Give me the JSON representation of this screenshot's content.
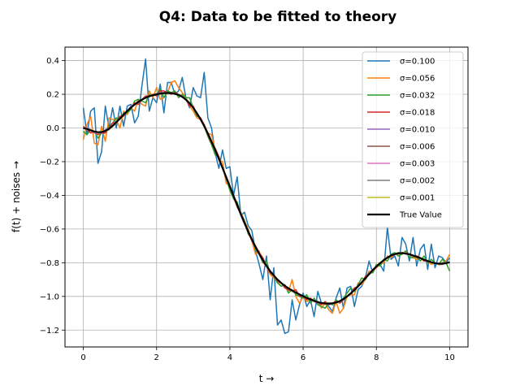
{
  "chart_data": {
    "type": "line",
    "title": "Q4: Data to be fitted to theory",
    "xlabel": "t →",
    "ylabel": "f(t) + noises →",
    "xlim": [
      -0.5,
      10.5
    ],
    "ylim": [
      -1.3,
      0.48
    ],
    "xticks": [
      0,
      2,
      4,
      6,
      8,
      10
    ],
    "xtick_labels": [
      "0",
      "2",
      "4",
      "6",
      "8",
      "10"
    ],
    "yticks": [
      -1.2,
      -1.0,
      -0.8,
      -0.6,
      -0.4,
      -0.2,
      0.0,
      0.2,
      0.4
    ],
    "ytick_labels": [
      "−1.2",
      "−1.0",
      "−0.8",
      "−0.6",
      "−0.4",
      "−0.2",
      "0.0",
      "0.2",
      "0.4"
    ],
    "grid": true,
    "legend_position": "upper-right",
    "x": [
      0.0,
      0.1,
      0.2,
      0.3,
      0.4,
      0.5,
      0.6,
      0.7,
      0.8,
      0.9,
      1.0,
      1.1,
      1.2,
      1.3,
      1.4,
      1.5,
      1.6,
      1.7,
      1.8,
      1.9,
      2.0,
      2.1,
      2.2,
      2.3,
      2.4,
      2.5,
      2.6,
      2.7,
      2.8,
      2.9,
      3.0,
      3.1,
      3.2,
      3.3,
      3.4,
      3.5,
      3.6,
      3.7,
      3.8,
      3.9,
      4.0,
      4.1,
      4.2,
      4.3,
      4.4,
      4.5,
      4.6,
      4.7,
      4.8,
      4.9,
      5.0,
      5.1,
      5.2,
      5.3,
      5.4,
      5.5,
      5.6,
      5.7,
      5.8,
      5.9,
      6.0,
      6.1,
      6.2,
      6.3,
      6.4,
      6.5,
      6.6,
      6.7,
      6.8,
      6.9,
      7.0,
      7.1,
      7.2,
      7.3,
      7.4,
      7.5,
      7.6,
      7.7,
      7.8,
      7.9,
      8.0,
      8.1,
      8.2,
      8.3,
      8.4,
      8.5,
      8.6,
      8.7,
      8.8,
      8.9,
      9.0,
      9.1,
      9.2,
      9.3,
      9.4,
      9.5,
      9.6,
      9.7,
      9.8,
      9.9,
      10.0
    ],
    "true_value": [
      0.0,
      -0.006,
      -0.014,
      -0.021,
      -0.025,
      -0.024,
      -0.018,
      -0.005,
      0.013,
      0.034,
      0.056,
      0.079,
      0.101,
      0.121,
      0.139,
      0.155,
      0.168,
      0.179,
      0.188,
      0.195,
      0.2,
      0.204,
      0.207,
      0.208,
      0.207,
      0.203,
      0.196,
      0.185,
      0.168,
      0.147,
      0.12,
      0.088,
      0.052,
      0.011,
      -0.033,
      -0.081,
      -0.131,
      -0.183,
      -0.237,
      -0.292,
      -0.347,
      -0.403,
      -0.458,
      -0.512,
      -0.564,
      -0.614,
      -0.661,
      -0.706,
      -0.747,
      -0.785,
      -0.819,
      -0.85,
      -0.876,
      -0.9,
      -0.92,
      -0.937,
      -0.952,
      -0.965,
      -0.977,
      -0.988,
      -0.999,
      -1.009,
      -1.018,
      -1.026,
      -1.034,
      -1.039,
      -1.042,
      -1.043,
      -1.041,
      -1.036,
      -1.028,
      -1.016,
      -1.0,
      -0.982,
      -0.962,
      -0.94,
      -0.916,
      -0.892,
      -0.868,
      -0.845,
      -0.823,
      -0.803,
      -0.785,
      -0.77,
      -0.757,
      -0.749,
      -0.744,
      -0.743,
      -0.745,
      -0.75,
      -0.757,
      -0.765,
      -0.773,
      -0.782,
      -0.79,
      -0.797,
      -0.803,
      -0.806,
      -0.806,
      -0.803,
      -0.797
    ],
    "series": [
      {
        "name": "σ=0.100",
        "color": "#1f77b4",
        "values": [
          0.12,
          -0.04,
          0.1,
          0.12,
          -0.21,
          -0.14,
          0.13,
          0.0,
          0.12,
          0.0,
          0.13,
          0.01,
          0.13,
          0.14,
          0.03,
          0.07,
          0.25,
          0.41,
          0.1,
          0.18,
          0.15,
          0.26,
          0.09,
          0.27,
          0.27,
          0.2,
          0.22,
          0.3,
          0.18,
          0.12,
          0.24,
          0.19,
          0.18,
          0.33,
          0.06,
          0.0,
          -0.15,
          -0.24,
          -0.13,
          -0.24,
          -0.23,
          -0.4,
          -0.29,
          -0.52,
          -0.5,
          -0.58,
          -0.61,
          -0.73,
          -0.81,
          -0.9,
          -0.76,
          -1.02,
          -0.83,
          -1.17,
          -1.14,
          -1.22,
          -1.21,
          -1.02,
          -1.14,
          -1.05,
          -0.98,
          -1.06,
          -1.02,
          -1.12,
          -0.97,
          -1.04,
          -1.04,
          -1.06,
          -1.09,
          -1.01,
          -0.95,
          -1.07,
          -0.95,
          -0.94,
          -1.06,
          -0.96,
          -0.94,
          -0.89,
          -0.79,
          -0.86,
          -0.82,
          -0.81,
          -0.85,
          -0.59,
          -0.78,
          -0.76,
          -0.82,
          -0.65,
          -0.69,
          -0.79,
          -0.65,
          -0.82,
          -0.72,
          -0.69,
          -0.84,
          -0.69,
          -0.83,
          -0.76,
          -0.77,
          -0.8,
          -0.77
        ]
      },
      {
        "name": "σ=0.056",
        "color": "#ff7f0e",
        "values": [
          -0.07,
          0.02,
          0.07,
          -0.09,
          -0.1,
          0.01,
          -0.08,
          0.06,
          0.05,
          0.05,
          0.0,
          0.1,
          0.08,
          0.12,
          0.1,
          0.17,
          0.14,
          0.13,
          0.22,
          0.18,
          0.24,
          0.17,
          0.18,
          0.21,
          0.27,
          0.28,
          0.24,
          0.21,
          0.18,
          0.13,
          0.1,
          0.06,
          0.05,
          0.02,
          -0.03,
          -0.04,
          -0.13,
          -0.19,
          -0.2,
          -0.33,
          -0.34,
          -0.42,
          -0.46,
          -0.5,
          -0.55,
          -0.6,
          -0.67,
          -0.75,
          -0.73,
          -0.8,
          -0.82,
          -0.87,
          -0.89,
          -0.91,
          -0.94,
          -0.93,
          -0.97,
          -0.9,
          -1.0,
          -1.04,
          -1.0,
          -1.03,
          -1.02,
          -1.03,
          -1.03,
          -1.07,
          -1.04,
          -1.08,
          -1.1,
          -1.03,
          -1.1,
          -1.07,
          -1.0,
          -0.99,
          -0.99,
          -0.92,
          -0.93,
          -0.9,
          -0.85,
          -0.85,
          -0.83,
          -0.81,
          -0.8,
          -0.76,
          -0.77,
          -0.75,
          -0.75,
          -0.74,
          -0.74,
          -0.75,
          -0.77,
          -0.78,
          -0.77,
          -0.79,
          -0.79,
          -0.81,
          -0.8,
          -0.81,
          -0.8,
          -0.79,
          -0.75
        ]
      },
      {
        "name": "σ=0.032",
        "color": "#2ca02c",
        "values": [
          -0.02,
          -0.04,
          -0.01,
          -0.02,
          -0.06,
          -0.03,
          -0.02,
          0.01,
          0.03,
          0.06,
          0.05,
          0.09,
          0.09,
          0.11,
          0.16,
          0.17,
          0.16,
          0.15,
          0.2,
          0.19,
          0.2,
          0.23,
          0.18,
          0.22,
          0.21,
          0.22,
          0.18,
          0.2,
          0.18,
          0.18,
          0.12,
          0.07,
          0.06,
          0.01,
          -0.05,
          -0.1,
          -0.16,
          -0.17,
          -0.24,
          -0.3,
          -0.37,
          -0.42,
          -0.44,
          -0.51,
          -0.55,
          -0.63,
          -0.66,
          -0.72,
          -0.75,
          -0.8,
          -0.79,
          -0.86,
          -0.88,
          -0.92,
          -0.94,
          -0.93,
          -0.98,
          -0.96,
          -0.99,
          -1.0,
          -1.01,
          -0.99,
          -1.04,
          -1.01,
          -1.05,
          -1.06,
          -1.07,
          -1.04,
          -1.05,
          -1.02,
          -1.04,
          -1.01,
          -0.98,
          -0.95,
          -0.97,
          -0.93,
          -0.89,
          -0.9,
          -0.86,
          -0.86,
          -0.81,
          -0.82,
          -0.78,
          -0.79,
          -0.75,
          -0.74,
          -0.76,
          -0.75,
          -0.73,
          -0.77,
          -0.77,
          -0.76,
          -0.79,
          -0.76,
          -0.8,
          -0.78,
          -0.8,
          -0.81,
          -0.78,
          -0.8,
          -0.85
        ]
      },
      {
        "name": "σ=0.018",
        "color": "#d62728",
        "values": [
          0.01,
          -0.01,
          -0.03,
          -0.02,
          -0.04,
          -0.03,
          -0.03,
          0.0,
          0.03,
          0.03,
          0.07,
          0.07,
          0.1,
          0.12,
          0.15,
          0.14,
          0.17,
          0.19,
          0.19,
          0.2,
          0.19,
          0.22,
          0.22,
          0.21,
          0.2,
          0.21,
          0.2,
          0.19,
          0.17,
          0.13,
          0.13,
          0.08,
          0.06,
          0.02,
          -0.04,
          -0.09,
          -0.12,
          -0.17,
          -0.24,
          -0.29,
          -0.35,
          -0.4,
          -0.47,
          -0.51,
          -0.57,
          -0.62,
          -0.67,
          -0.7,
          -0.74,
          -0.77,
          -0.82,
          -0.86,
          -0.87,
          -0.91,
          -0.92,
          -0.95,
          -0.96,
          -0.97,
          -0.96,
          -1.0,
          -1.0,
          -1.02,
          -1.01,
          -1.03,
          -1.04,
          -1.05,
          -1.03,
          -1.05,
          -1.04,
          -1.03,
          -1.04,
          -1.02,
          -1.0,
          -0.98,
          -0.95,
          -0.94,
          -0.92,
          -0.88,
          -0.87,
          -0.84,
          -0.82,
          -0.8,
          -0.79,
          -0.77,
          -0.76,
          -0.75,
          -0.74,
          -0.74,
          -0.74,
          -0.75,
          -0.76,
          -0.76,
          -0.77,
          -0.79,
          -0.79,
          -0.8,
          -0.8,
          -0.81,
          -0.8,
          -0.8,
          -0.8
        ]
      },
      {
        "name": "σ=0.010",
        "color": "#9467bd",
        "values": [
          0.0,
          0.0,
          -0.01,
          -0.03,
          -0.03,
          -0.03,
          -0.01,
          0.0,
          0.01,
          0.03,
          0.06,
          0.08,
          0.1,
          0.13,
          0.14,
          0.15,
          0.17,
          0.18,
          0.19,
          0.2,
          0.2,
          0.21,
          0.21,
          0.21,
          0.21,
          0.2,
          0.2,
          0.19,
          0.17,
          0.15,
          0.12,
          0.09,
          0.05,
          0.01,
          -0.04,
          -0.08,
          -0.13,
          -0.18,
          -0.24,
          -0.3,
          -0.35,
          -0.4,
          -0.46,
          -0.52,
          -0.57,
          -0.61,
          -0.66,
          -0.71,
          -0.75,
          -0.78,
          -0.82,
          -0.85,
          -0.88,
          -0.9,
          -0.92,
          -0.94,
          -0.95,
          -0.97,
          -0.98,
          -0.99,
          -1.0,
          -1.01,
          -1.02,
          -1.03,
          -1.04,
          -1.04,
          -1.04,
          -1.05,
          -1.04,
          -1.04,
          -1.03,
          -1.02,
          -1.0,
          -0.98,
          -0.96,
          -0.94,
          -0.92,
          -0.89,
          -0.87,
          -0.84,
          -0.82,
          -0.8,
          -0.79,
          -0.77,
          -0.76,
          -0.75,
          -0.74,
          -0.74,
          -0.75,
          -0.75,
          -0.76,
          -0.77,
          -0.77,
          -0.78,
          -0.79,
          -0.8,
          -0.8,
          -0.81,
          -0.8,
          -0.8,
          -0.8
        ]
      },
      {
        "name": "σ=0.006",
        "color": "#8c564b",
        "values": [
          0.0,
          -0.01,
          -0.01,
          -0.02,
          -0.03,
          -0.02,
          -0.02,
          -0.01,
          0.01,
          0.03,
          0.06,
          0.08,
          0.1,
          0.12,
          0.14,
          0.16,
          0.17,
          0.18,
          0.19,
          0.2,
          0.2,
          0.2,
          0.21,
          0.21,
          0.21,
          0.2,
          0.2,
          0.19,
          0.17,
          0.15,
          0.12,
          0.09,
          0.05,
          0.01,
          -0.03,
          -0.08,
          -0.13,
          -0.18,
          -0.24,
          -0.29,
          -0.35,
          -0.4,
          -0.46,
          -0.51,
          -0.56,
          -0.61,
          -0.66,
          -0.71,
          -0.75,
          -0.79,
          -0.82,
          -0.85,
          -0.88,
          -0.9,
          -0.92,
          -0.94,
          -0.95,
          -0.97,
          -0.98,
          -0.99,
          -1.0,
          -1.01,
          -1.02,
          -1.03,
          -1.03,
          -1.04,
          -1.04,
          -1.04,
          -1.04,
          -1.04,
          -1.03,
          -1.02,
          -1.0,
          -0.98,
          -0.96,
          -0.94,
          -0.92,
          -0.89,
          -0.87,
          -0.85,
          -0.82,
          -0.8,
          -0.79,
          -0.77,
          -0.76,
          -0.75,
          -0.74,
          -0.74,
          -0.74,
          -0.75,
          -0.76,
          -0.77,
          -0.77,
          -0.78,
          -0.79,
          -0.8,
          -0.8,
          -0.81,
          -0.81,
          -0.8,
          -0.8
        ]
      },
      {
        "name": "σ=0.003",
        "color": "#e377c2",
        "values": [
          0.0,
          -0.01,
          -0.01,
          -0.02,
          -0.03,
          -0.02,
          -0.02,
          -0.01,
          0.01,
          0.03,
          0.06,
          0.08,
          0.1,
          0.12,
          0.14,
          0.16,
          0.17,
          0.18,
          0.19,
          0.2,
          0.2,
          0.2,
          0.21,
          0.21,
          0.21,
          0.2,
          0.2,
          0.19,
          0.17,
          0.15,
          0.12,
          0.09,
          0.05,
          0.01,
          -0.03,
          -0.08,
          -0.13,
          -0.18,
          -0.24,
          -0.29,
          -0.35,
          -0.4,
          -0.46,
          -0.51,
          -0.56,
          -0.61,
          -0.66,
          -0.71,
          -0.75,
          -0.79,
          -0.82,
          -0.85,
          -0.88,
          -0.9,
          -0.92,
          -0.94,
          -0.95,
          -0.97,
          -0.98,
          -0.99,
          -1.0,
          -1.01,
          -1.02,
          -1.03,
          -1.03,
          -1.04,
          -1.04,
          -1.04,
          -1.04,
          -1.04,
          -1.03,
          -1.02,
          -1.0,
          -0.98,
          -0.96,
          -0.94,
          -0.92,
          -0.89,
          -0.87,
          -0.85,
          -0.82,
          -0.8,
          -0.79,
          -0.77,
          -0.76,
          -0.75,
          -0.74,
          -0.74,
          -0.74,
          -0.75,
          -0.76,
          -0.77,
          -0.77,
          -0.78,
          -0.79,
          -0.8,
          -0.8,
          -0.81,
          -0.81,
          -0.8,
          -0.8
        ]
      },
      {
        "name": "σ=0.002",
        "color": "#7f7f7f",
        "values": [
          0.0,
          -0.01,
          -0.01,
          -0.02,
          -0.03,
          -0.02,
          -0.02,
          -0.01,
          0.01,
          0.03,
          0.06,
          0.08,
          0.1,
          0.12,
          0.14,
          0.16,
          0.17,
          0.18,
          0.19,
          0.2,
          0.2,
          0.2,
          0.21,
          0.21,
          0.21,
          0.2,
          0.2,
          0.19,
          0.17,
          0.15,
          0.12,
          0.09,
          0.05,
          0.01,
          -0.03,
          -0.08,
          -0.13,
          -0.18,
          -0.24,
          -0.29,
          -0.35,
          -0.4,
          -0.46,
          -0.51,
          -0.56,
          -0.61,
          -0.66,
          -0.71,
          -0.75,
          -0.79,
          -0.82,
          -0.85,
          -0.88,
          -0.9,
          -0.92,
          -0.94,
          -0.95,
          -0.97,
          -0.98,
          -0.99,
          -1.0,
          -1.01,
          -1.02,
          -1.03,
          -1.03,
          -1.04,
          -1.04,
          -1.04,
          -1.04,
          -1.04,
          -1.03,
          -1.02,
          -1.0,
          -0.98,
          -0.96,
          -0.94,
          -0.92,
          -0.89,
          -0.87,
          -0.85,
          -0.82,
          -0.8,
          -0.79,
          -0.77,
          -0.76,
          -0.75,
          -0.74,
          -0.74,
          -0.74,
          -0.75,
          -0.76,
          -0.77,
          -0.77,
          -0.78,
          -0.79,
          -0.8,
          -0.8,
          -0.81,
          -0.81,
          -0.8,
          -0.8
        ]
      },
      {
        "name": "σ=0.001",
        "color": "#bcbd22",
        "values": [
          0.0,
          -0.01,
          -0.01,
          -0.02,
          -0.03,
          -0.02,
          -0.02,
          -0.01,
          0.01,
          0.03,
          0.06,
          0.08,
          0.1,
          0.12,
          0.14,
          0.16,
          0.17,
          0.18,
          0.19,
          0.2,
          0.2,
          0.2,
          0.21,
          0.21,
          0.21,
          0.2,
          0.2,
          0.19,
          0.17,
          0.15,
          0.12,
          0.09,
          0.05,
          0.01,
          -0.03,
          -0.08,
          -0.13,
          -0.18,
          -0.24,
          -0.29,
          -0.35,
          -0.4,
          -0.46,
          -0.51,
          -0.56,
          -0.61,
          -0.66,
          -0.71,
          -0.75,
          -0.79,
          -0.82,
          -0.85,
          -0.88,
          -0.9,
          -0.92,
          -0.94,
          -0.95,
          -0.97,
          -0.98,
          -0.99,
          -1.0,
          -1.01,
          -1.02,
          -1.03,
          -1.03,
          -1.04,
          -1.04,
          -1.04,
          -1.04,
          -1.04,
          -1.03,
          -1.02,
          -1.0,
          -0.98,
          -0.96,
          -0.94,
          -0.92,
          -0.89,
          -0.87,
          -0.85,
          -0.82,
          -0.8,
          -0.79,
          -0.77,
          -0.76,
          -0.75,
          -0.74,
          -0.74,
          -0.74,
          -0.75,
          -0.76,
          -0.77,
          -0.77,
          -0.78,
          -0.79,
          -0.8,
          -0.8,
          -0.81,
          -0.81,
          -0.8,
          -0.8
        ]
      }
    ],
    "true_series": {
      "name": "True Value",
      "color": "#000000"
    }
  }
}
